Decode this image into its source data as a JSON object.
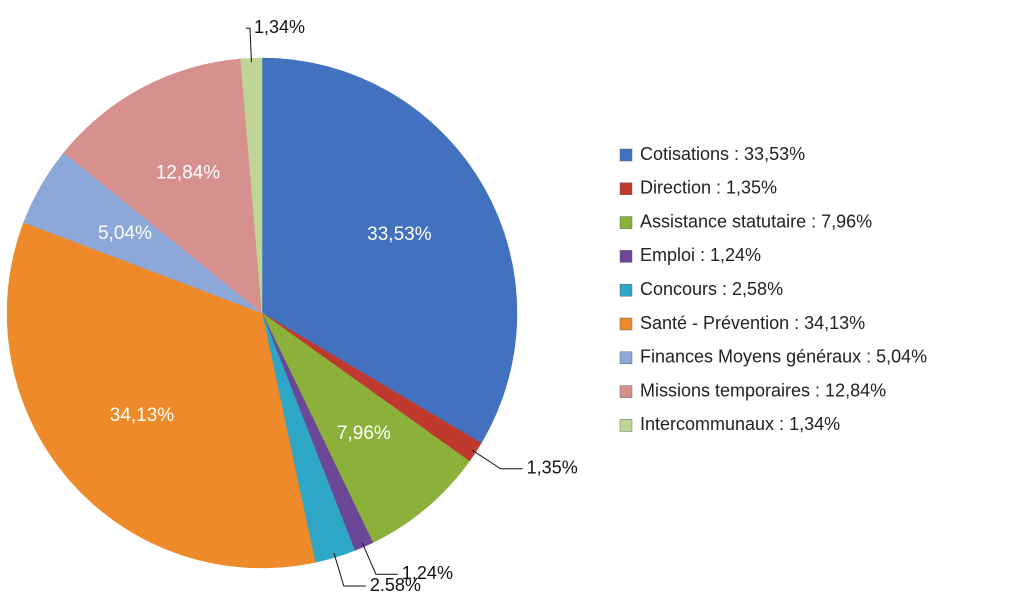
{
  "chart_data": {
    "type": "pie",
    "categories": [
      "Cotisations : 33,53%",
      "Direction : 1,35%",
      "Assistance statutaire : 7,96%",
      "Emploi : 1,24%",
      "Concours : 2,58%",
      "Santé - Prévention : 34,13%",
      "Finances Moyens généraux : 5,04%",
      "Missions temporaires : 12,84%",
      "Intercommunaux : 1,34%"
    ],
    "values": [
      33.53,
      1.35,
      7.96,
      1.24,
      2.58,
      34.13,
      5.04,
      12.84,
      1.34
    ],
    "value_labels": [
      "33,53%",
      "1,35%",
      "7,96%",
      "1,24%",
      "2.58%",
      "34,13%",
      "5,04%",
      "12,84%",
      "1,34%"
    ],
    "colors": [
      "#4272bf",
      "#c0392f",
      "#8bb13a",
      "#6c4697",
      "#2ea6c6",
      "#ef8a2a",
      "#8ca8d8",
      "#d6908e",
      "#bfd596"
    ],
    "legend": "right"
  }
}
